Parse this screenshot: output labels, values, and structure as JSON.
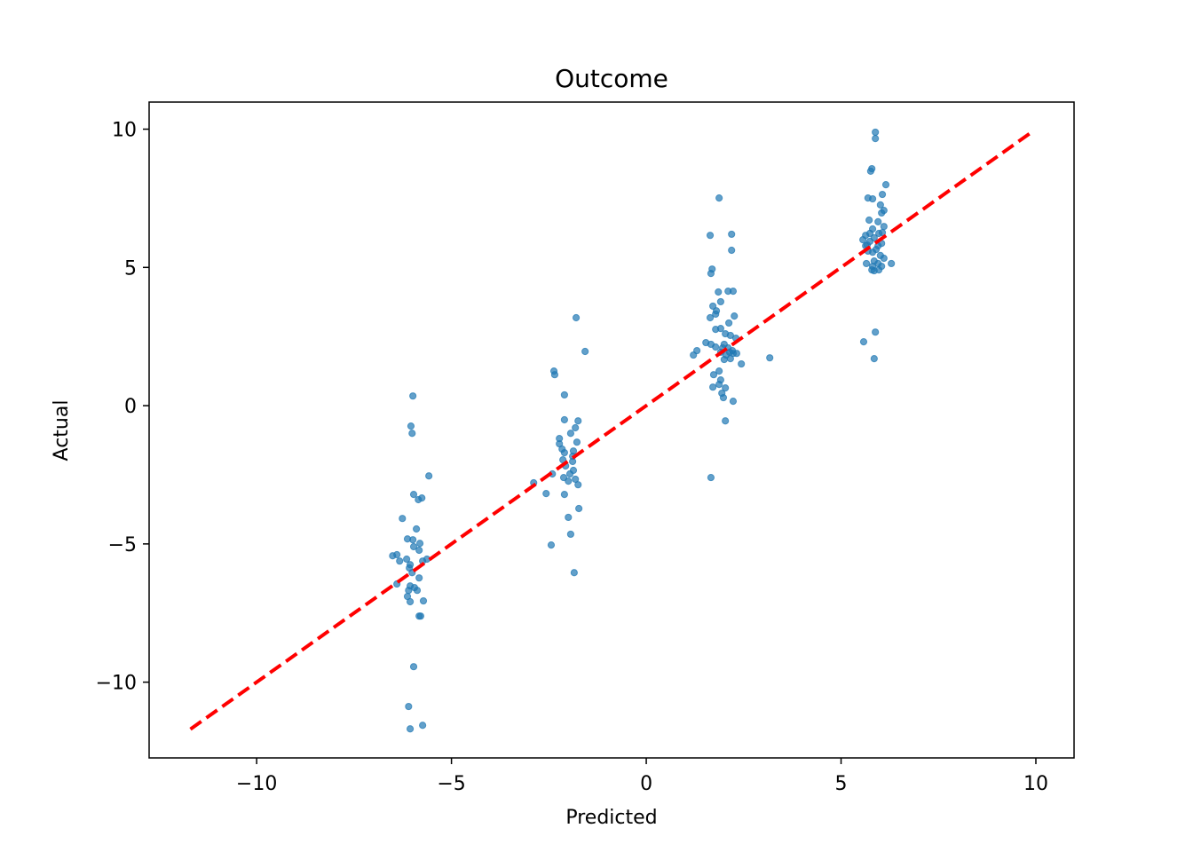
{
  "chart_data": {
    "type": "scatter",
    "title": "Outcome",
    "xlabel": "Predicted",
    "ylabel": "Actual",
    "xlim": [
      -12.76,
      10.98
    ],
    "ylim": [
      -12.74,
      10.98
    ],
    "xticks": [
      -10,
      -5,
      0,
      5,
      10
    ],
    "xtick_labels": [
      "−10",
      "−5",
      "0",
      "5",
      "10"
    ],
    "yticks": [
      -10,
      -5,
      0,
      5,
      10
    ],
    "ytick_labels": [
      "−10",
      "−5",
      "0",
      "5",
      "10"
    ],
    "grid": false,
    "point_color": "#1f77b4",
    "reference_line": {
      "style": "dashed",
      "color": "#ff0000",
      "x": [
        -11.7,
        9.9
      ],
      "y": [
        -11.7,
        9.9
      ]
    },
    "points": [
      [
        -5.99,
        0.35
      ],
      [
        -6.04,
        -0.74
      ],
      [
        -6.01,
        -1.0
      ],
      [
        -5.58,
        -2.54
      ],
      [
        -5.97,
        -3.21
      ],
      [
        -5.76,
        -3.34
      ],
      [
        -5.85,
        -3.4
      ],
      [
        -6.26,
        -4.08
      ],
      [
        -5.9,
        -4.46
      ],
      [
        -6.13,
        -4.82
      ],
      [
        -5.99,
        -4.85
      ],
      [
        -6.4,
        -5.39
      ],
      [
        -6.51,
        -5.43
      ],
      [
        -6.15,
        -5.55
      ],
      [
        -5.97,
        -5.1
      ],
      [
        -5.83,
        -5.23
      ],
      [
        -5.63,
        -5.55
      ],
      [
        -6.06,
        -5.75
      ],
      [
        -6.01,
        -6.04
      ],
      [
        -5.83,
        -6.23
      ],
      [
        -6.4,
        -6.45
      ],
      [
        -6.06,
        -6.52
      ],
      [
        -6.1,
        -6.68
      ],
      [
        -5.88,
        -6.68
      ],
      [
        -6.13,
        -6.9
      ],
      [
        -5.95,
        -6.58
      ],
      [
        -5.72,
        -7.06
      ],
      [
        -6.06,
        -7.09
      ],
      [
        -5.83,
        -7.61
      ],
      [
        -5.79,
        -7.61
      ],
      [
        -5.97,
        -9.44
      ],
      [
        -6.1,
        -10.88
      ],
      [
        -5.74,
        -11.56
      ],
      [
        -6.06,
        -11.69
      ],
      [
        -5.81,
        -4.98
      ],
      [
        -5.74,
        -5.62
      ],
      [
        -6.08,
        -5.87
      ],
      [
        -6.33,
        -5.62
      ],
      [
        -1.8,
        3.18
      ],
      [
        -1.57,
        1.96
      ],
      [
        -2.37,
        1.25
      ],
      [
        -2.35,
        1.12
      ],
      [
        -2.1,
        0.39
      ],
      [
        -2.1,
        -0.51
      ],
      [
        -1.75,
        -0.55
      ],
      [
        -1.94,
        -1.0
      ],
      [
        -1.82,
        -0.8
      ],
      [
        -2.23,
        -1.19
      ],
      [
        -1.78,
        -1.32
      ],
      [
        -2.16,
        -1.57
      ],
      [
        -2.1,
        -1.7
      ],
      [
        -1.87,
        -1.64
      ],
      [
        -2.14,
        -1.96
      ],
      [
        -1.89,
        -2.02
      ],
      [
        -2.07,
        -2.18
      ],
      [
        -1.87,
        -2.34
      ],
      [
        -1.96,
        -2.47
      ],
      [
        -2.89,
        -2.79
      ],
      [
        -2.41,
        -2.47
      ],
      [
        -1.82,
        -2.66
      ],
      [
        -1.75,
        -2.86
      ],
      [
        -2.0,
        -2.73
      ],
      [
        -2.12,
        -2.6
      ],
      [
        -2.57,
        -3.18
      ],
      [
        -2.1,
        -3.21
      ],
      [
        -1.73,
        -3.72
      ],
      [
        -2.0,
        -4.04
      ],
      [
        -1.94,
        -4.65
      ],
      [
        -2.44,
        -5.04
      ],
      [
        -1.85,
        -6.04
      ],
      [
        -2.23,
        -1.38
      ],
      [
        -1.89,
        -1.83
      ],
      [
        1.87,
        7.51
      ],
      [
        1.64,
        6.16
      ],
      [
        2.19,
        6.2
      ],
      [
        1.69,
        4.94
      ],
      [
        1.66,
        4.78
      ],
      [
        2.19,
        5.62
      ],
      [
        1.85,
        4.11
      ],
      [
        2.1,
        4.14
      ],
      [
        2.23,
        4.14
      ],
      [
        1.91,
        3.76
      ],
      [
        1.71,
        3.6
      ],
      [
        1.8,
        3.43
      ],
      [
        2.26,
        3.24
      ],
      [
        1.64,
        3.18
      ],
      [
        1.78,
        3.31
      ],
      [
        2.12,
        2.99
      ],
      [
        1.78,
        2.76
      ],
      [
        1.91,
        2.79
      ],
      [
        2.03,
        2.6
      ],
      [
        2.16,
        2.54
      ],
      [
        1.53,
        2.28
      ],
      [
        1.66,
        2.22
      ],
      [
        1.78,
        2.12
      ],
      [
        1.3,
        1.99
      ],
      [
        1.21,
        1.83
      ],
      [
        2.0,
        2.22
      ],
      [
        2.3,
        2.44
      ],
      [
        2.1,
        2.09
      ],
      [
        1.91,
        1.93
      ],
      [
        2.05,
        1.83
      ],
      [
        2.23,
        1.89
      ],
      [
        2.32,
        1.89
      ],
      [
        2.0,
        1.67
      ],
      [
        2.16,
        1.7
      ],
      [
        2.44,
        1.51
      ],
      [
        3.17,
        1.73
      ],
      [
        1.87,
        1.25
      ],
      [
        1.73,
        1.12
      ],
      [
        1.91,
        0.93
      ],
      [
        1.87,
        0.77
      ],
      [
        1.71,
        0.67
      ],
      [
        2.03,
        0.64
      ],
      [
        1.94,
        0.45
      ],
      [
        1.98,
        0.29
      ],
      [
        2.23,
        0.16
      ],
      [
        2.03,
        -0.55
      ],
      [
        1.66,
        -2.6
      ],
      [
        2.14,
        1.93
      ],
      [
        1.96,
        2.09
      ],
      [
        2.21,
        1.99
      ],
      [
        5.88,
        9.89
      ],
      [
        5.88,
        9.66
      ],
      [
        5.79,
        8.57
      ],
      [
        5.76,
        8.48
      ],
      [
        6.15,
        7.99
      ],
      [
        5.69,
        7.51
      ],
      [
        5.81,
        7.48
      ],
      [
        6.06,
        7.64
      ],
      [
        6.01,
        7.26
      ],
      [
        6.1,
        7.06
      ],
      [
        6.04,
        6.97
      ],
      [
        5.72,
        6.71
      ],
      [
        5.95,
        6.65
      ],
      [
        5.81,
        6.39
      ],
      [
        6.1,
        6.48
      ],
      [
        5.63,
        6.16
      ],
      [
        5.74,
        6.23
      ],
      [
        5.97,
        6.23
      ],
      [
        5.85,
        6.07
      ],
      [
        5.56,
        6.0
      ],
      [
        5.74,
        5.94
      ],
      [
        6.04,
        5.87
      ],
      [
        5.95,
        5.78
      ],
      [
        5.63,
        5.78
      ],
      [
        5.9,
        5.65
      ],
      [
        5.81,
        5.55
      ],
      [
        5.69,
        5.59
      ],
      [
        6.01,
        5.43
      ],
      [
        6.1,
        5.33
      ],
      [
        5.85,
        5.23
      ],
      [
        5.65,
        5.14
      ],
      [
        6.29,
        5.14
      ],
      [
        5.95,
        5.14
      ],
      [
        5.81,
        5.04
      ],
      [
        6.04,
        5.04
      ],
      [
        5.85,
        4.88
      ],
      [
        5.79,
        4.91
      ],
      [
        5.97,
        4.91
      ],
      [
        5.58,
        2.31
      ],
      [
        5.88,
        2.66
      ],
      [
        5.85,
        1.7
      ],
      [
        5.67,
        5.81
      ],
      [
        6.06,
        6.26
      ]
    ]
  }
}
